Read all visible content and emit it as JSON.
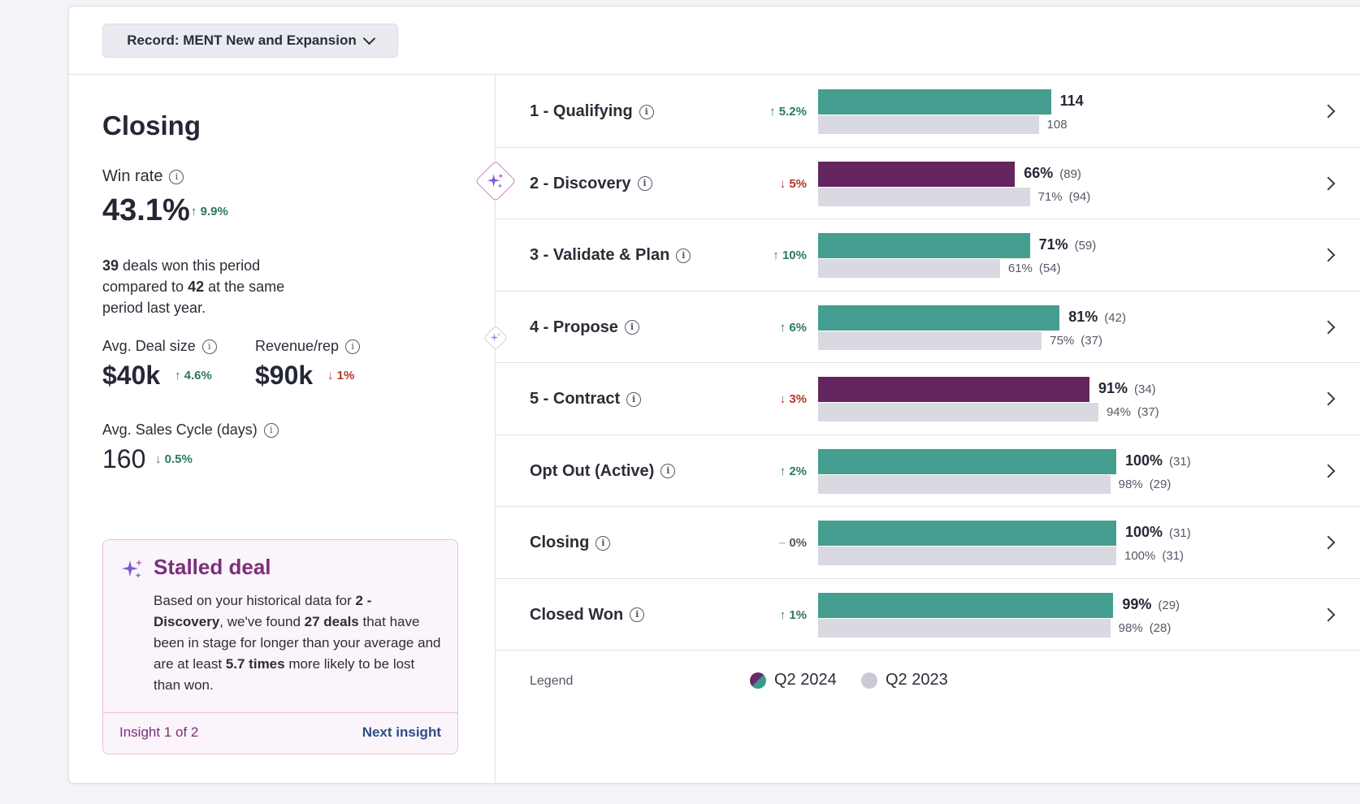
{
  "record_selector": {
    "label": "Record: MENT New and Expansion"
  },
  "summary": {
    "title": "Closing",
    "win_rate": {
      "label": "Win rate",
      "value": "43.1%",
      "delta": "9.9%",
      "direction": "up"
    },
    "description": {
      "won": "39",
      "text1": " deals won this period compared to ",
      "prev": "42",
      "text2": " at the same period last year."
    },
    "avg_deal_size": {
      "label": "Avg. Deal size",
      "value": "$40k",
      "delta": "4.6%",
      "direction": "up"
    },
    "revenue_rep": {
      "label": "Revenue/rep",
      "value": "$90k",
      "delta": "1%",
      "direction": "down"
    },
    "avg_sales_cycle": {
      "label": "Avg. Sales Cycle (days)",
      "value": "160",
      "delta": "0.5%",
      "direction": "down"
    }
  },
  "insight": {
    "title": "Stalled deal",
    "body": {
      "p1": "Based on your historical data for ",
      "stage": "2 - Discovery",
      "p2": ", we've found ",
      "deals": "27 deals",
      "p3": " that have been in stage for longer than your average and are at least ",
      "times": "5.7 times",
      "p4": " more likely to be lost than won."
    },
    "count": "Insight 1 of 2",
    "next": "Next insight"
  },
  "colors": {
    "teal": "#459e90",
    "purple": "#63245f",
    "grey": "#d8d9e1",
    "up": "#2b7a5c",
    "down": "#b0392b"
  },
  "chart_data": {
    "type": "bar",
    "categories": [
      "1 - Qualifying",
      "2 - Discovery",
      "3 - Validate & Plan",
      "4 - Propose",
      "5 - Contract",
      "Opt Out (Active)",
      "Closing",
      "Closed Won"
    ],
    "series": [
      {
        "name": "Q2 2024",
        "values": [
          114,
          66,
          71,
          81,
          91,
          100,
          100,
          99
        ],
        "labels": [
          "114",
          "66%",
          "71%",
          "81%",
          "91%",
          "100%",
          "100%",
          "99%"
        ],
        "counts": [
          "",
          "(89)",
          "(59)",
          "(42)",
          "(34)",
          "(31)",
          "(31)",
          "(29)"
        ]
      },
      {
        "name": "Q2 2023",
        "values": [
          108,
          71,
          61,
          75,
          94,
          98,
          100,
          98
        ],
        "labels": [
          "108",
          "71%",
          "61%",
          "75%",
          "94%",
          "98%",
          "100%",
          "98%"
        ],
        "counts": [
          "",
          "(94)",
          "(54)",
          "(37)",
          "(37)",
          "(29)",
          "(31)",
          "(28)"
        ]
      }
    ],
    "deltas": [
      "5.2%",
      "5%",
      "10%",
      "6%",
      "3%",
      "2%",
      "0%",
      "1%"
    ],
    "delta_directions": [
      "up",
      "down",
      "up",
      "up",
      "down",
      "up",
      "flat",
      "up"
    ],
    "bar_colors": [
      "#459e90",
      "#63245f",
      "#459e90",
      "#459e90",
      "#63245f",
      "#459e90",
      "#459e90",
      "#459e90"
    ],
    "legend_title": "Legend",
    "legend_position": "bottom"
  }
}
